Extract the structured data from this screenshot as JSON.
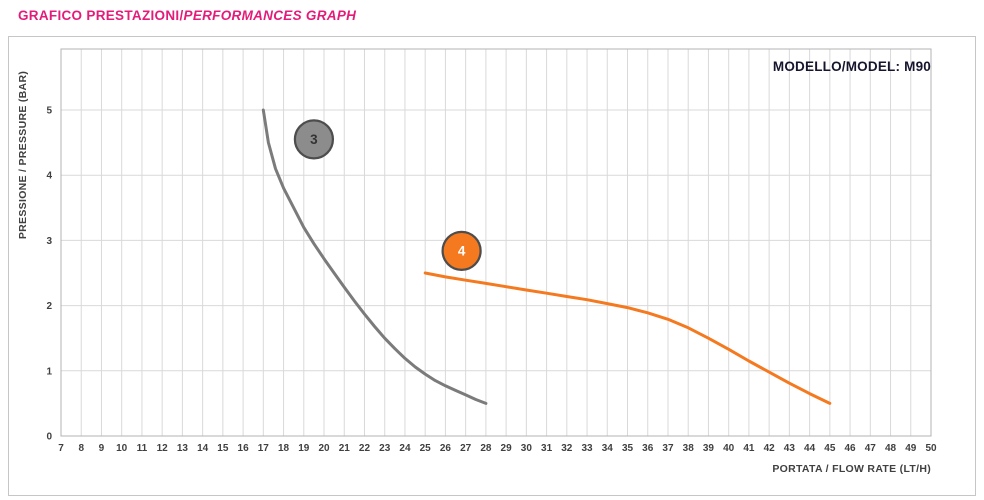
{
  "header": {
    "title_primary": "GRAFICO PRESTAZIONI/",
    "title_secondary": "PERFORMANCES GRAPH"
  },
  "chart": {
    "model_label": "MODELLO/MODEL: M90"
  },
  "colors": {
    "title_accent": "#e31c79",
    "grid": "#d9d9d9",
    "plot_border": "#b3b3b3",
    "axis_text": "#404040",
    "model_text": "#15152e"
  },
  "chart_data": {
    "type": "line",
    "title": "GRAFICO PRESTAZIONI/PERFORMANCES GRAPH",
    "xlabel": "PORTATA / FLOW RATE (LT/H)",
    "ylabel": "PRESSIONE / PRESSURE (BAR)",
    "xlim": [
      7,
      50
    ],
    "ylim": [
      0,
      6
    ],
    "grid": true,
    "legend": "none",
    "x_ticks": [
      7,
      8,
      9,
      10,
      11,
      12,
      13,
      14,
      15,
      16,
      17,
      18,
      19,
      20,
      21,
      22,
      23,
      24,
      25,
      26,
      27,
      28,
      29,
      30,
      31,
      32,
      33,
      34,
      35,
      36,
      37,
      38,
      39,
      40,
      41,
      42,
      43,
      44,
      45,
      46,
      47,
      48,
      49,
      50
    ],
    "y_ticks": [
      0,
      1,
      2,
      3,
      4,
      5
    ],
    "series": [
      {
        "name": "3",
        "color": "#7b7b7b",
        "badge": {
          "label": "3",
          "x": 19.5,
          "y": 4.55,
          "fill": "#8c8c8c",
          "border": "#4d4d4d",
          "text_color": "#333333"
        },
        "points": [
          [
            17,
            5.0
          ],
          [
            17.25,
            4.5
          ],
          [
            17.6,
            4.1
          ],
          [
            18,
            3.8
          ],
          [
            18.5,
            3.5
          ],
          [
            19,
            3.2
          ],
          [
            19.5,
            2.95
          ],
          [
            20,
            2.72
          ],
          [
            20.5,
            2.5
          ],
          [
            21,
            2.28
          ],
          [
            21.5,
            2.07
          ],
          [
            22,
            1.87
          ],
          [
            22.5,
            1.68
          ],
          [
            23,
            1.5
          ],
          [
            23.5,
            1.34
          ],
          [
            24,
            1.19
          ],
          [
            24.5,
            1.06
          ],
          [
            25,
            0.95
          ],
          [
            25.5,
            0.85
          ],
          [
            26,
            0.77
          ],
          [
            26.5,
            0.7
          ],
          [
            27,
            0.63
          ],
          [
            27.5,
            0.56
          ],
          [
            28,
            0.5
          ]
        ]
      },
      {
        "name": "4",
        "color": "#f4791f",
        "badge": {
          "label": "4",
          "x": 26.8,
          "y": 2.84,
          "fill": "#f4791f",
          "border": "#4d4d4d",
          "text_color": "#ffffff"
        },
        "points": [
          [
            25,
            2.5
          ],
          [
            26,
            2.44
          ],
          [
            27,
            2.39
          ],
          [
            28,
            2.34
          ],
          [
            29,
            2.29
          ],
          [
            30,
            2.24
          ],
          [
            31,
            2.19
          ],
          [
            32,
            2.14
          ],
          [
            33,
            2.09
          ],
          [
            34,
            2.03
          ],
          [
            35,
            1.97
          ],
          [
            36,
            1.89
          ],
          [
            37,
            1.79
          ],
          [
            38,
            1.66
          ],
          [
            39,
            1.5
          ],
          [
            40,
            1.33
          ],
          [
            41,
            1.15
          ],
          [
            42,
            0.98
          ],
          [
            43,
            0.81
          ],
          [
            44,
            0.65
          ],
          [
            45,
            0.5
          ]
        ]
      }
    ]
  }
}
